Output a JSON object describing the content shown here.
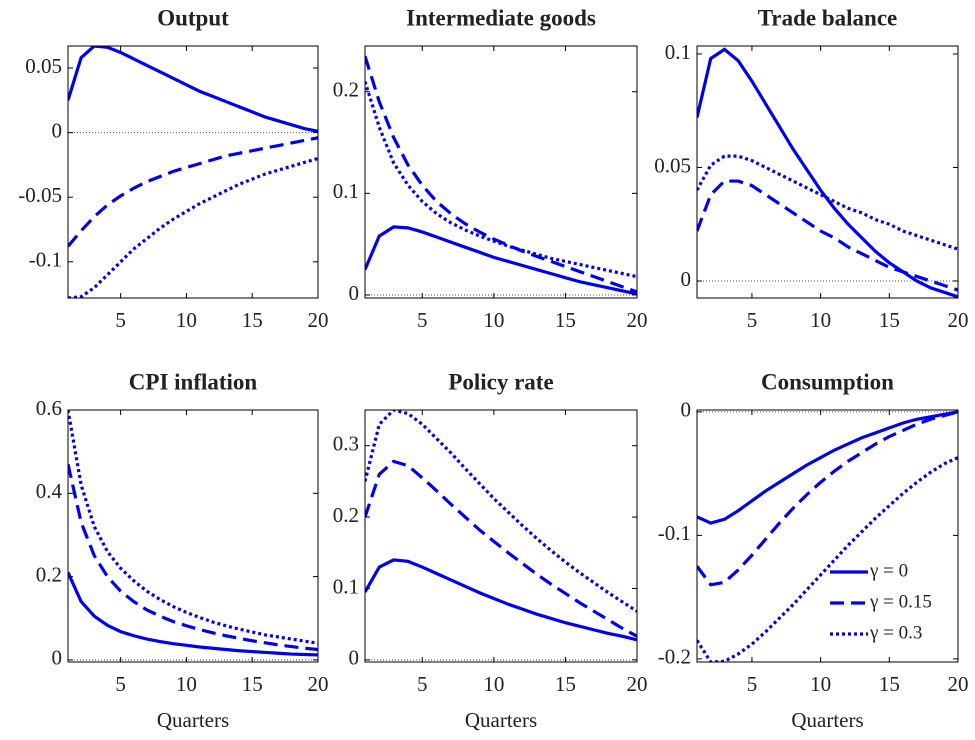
{
  "chart_data": [
    {
      "type": "line",
      "title": "Output",
      "x": [
        1,
        2,
        3,
        4,
        5,
        6,
        7,
        8,
        9,
        10,
        11,
        12,
        13,
        14,
        15,
        16,
        17,
        18,
        19,
        20
      ],
      "xlim": [
        1,
        20
      ],
      "xticks": [
        5,
        10,
        15,
        20
      ],
      "ylim": [
        -0.128,
        0.067
      ],
      "yticks": [
        -0.1,
        -0.05,
        0,
        0.05
      ],
      "zero_line": true,
      "series": [
        {
          "color": "#0000ee",
          "dash": "solid",
          "values": [
            0.025,
            0.058,
            0.067,
            0.066,
            0.062,
            0.057,
            0.052,
            0.047,
            0.042,
            0.037,
            0.032,
            0.028,
            0.024,
            0.02,
            0.016,
            0.012,
            0.009,
            0.006,
            0.003,
            0.001
          ]
        },
        {
          "color": "#0000ee",
          "dash": "dashed",
          "values": [
            -0.088,
            -0.076,
            -0.065,
            -0.056,
            -0.049,
            -0.043,
            -0.038,
            -0.034,
            -0.03,
            -0.027,
            -0.024,
            -0.021,
            -0.018,
            -0.016,
            -0.014,
            -0.012,
            -0.01,
            -0.008,
            -0.006,
            -0.004
          ]
        },
        {
          "color": "#0000ee",
          "dash": "dotted",
          "values": [
            -0.128,
            -0.127,
            -0.12,
            -0.11,
            -0.1,
            -0.09,
            -0.082,
            -0.074,
            -0.067,
            -0.061,
            -0.055,
            -0.05,
            -0.045,
            -0.04,
            -0.036,
            -0.032,
            -0.029,
            -0.026,
            -0.023,
            -0.02
          ]
        }
      ]
    },
    {
      "type": "line",
      "title": "Intermediate goods",
      "x": [
        1,
        2,
        3,
        4,
        5,
        6,
        7,
        8,
        9,
        10,
        11,
        12,
        13,
        14,
        15,
        16,
        17,
        18,
        19,
        20
      ],
      "xlim": [
        1,
        20
      ],
      "xticks": [
        5,
        10,
        15,
        20
      ],
      "ylim": [
        -0.003,
        0.245
      ],
      "yticks": [
        0,
        0.1,
        0.2
      ],
      "zero_line": true,
      "series": [
        {
          "color": "#0000ee",
          "dash": "solid",
          "values": [
            0.025,
            0.058,
            0.067,
            0.066,
            0.062,
            0.057,
            0.052,
            0.047,
            0.042,
            0.037,
            0.033,
            0.029,
            0.025,
            0.021,
            0.017,
            0.013,
            0.01,
            0.007,
            0.004,
            0.001
          ]
        },
        {
          "color": "#0000ee",
          "dash": "dashed",
          "values": [
            0.235,
            0.19,
            0.155,
            0.128,
            0.108,
            0.092,
            0.08,
            0.07,
            0.062,
            0.055,
            0.049,
            0.043,
            0.038,
            0.033,
            0.028,
            0.023,
            0.018,
            0.013,
            0.008,
            0.003
          ]
        },
        {
          "color": "#0000ee",
          "dash": "dotted",
          "values": [
            0.21,
            0.165,
            0.13,
            0.108,
            0.092,
            0.08,
            0.071,
            0.064,
            0.058,
            0.053,
            0.048,
            0.044,
            0.04,
            0.036,
            0.033,
            0.03,
            0.027,
            0.024,
            0.021,
            0.018
          ]
        }
      ]
    },
    {
      "type": "line",
      "title": "Trade balance",
      "x": [
        1,
        2,
        3,
        4,
        5,
        6,
        7,
        8,
        9,
        10,
        11,
        12,
        13,
        14,
        15,
        16,
        17,
        18,
        19,
        20
      ],
      "xlim": [
        1,
        20
      ],
      "xticks": [
        5,
        10,
        15,
        20
      ],
      "ylim": [
        -0.0075,
        0.1035
      ],
      "yticks": [
        0,
        0.05,
        0.1
      ],
      "zero_line": true,
      "series": [
        {
          "color": "#0000ee",
          "dash": "solid",
          "values": [
            0.072,
            0.098,
            0.102,
            0.097,
            0.088,
            0.078,
            0.068,
            0.058,
            0.049,
            0.04,
            0.032,
            0.025,
            0.019,
            0.013,
            0.008,
            0.004,
            0.0,
            -0.003,
            -0.005,
            -0.007
          ]
        },
        {
          "color": "#0000ee",
          "dash": "dashed",
          "values": [
            0.022,
            0.038,
            0.044,
            0.044,
            0.042,
            0.038,
            0.034,
            0.03,
            0.026,
            0.022,
            0.019,
            0.015,
            0.012,
            0.009,
            0.006,
            0.004,
            0.002,
            0.0,
            -0.002,
            -0.004
          ]
        },
        {
          "color": "#0000ee",
          "dash": "dotted",
          "values": [
            0.04,
            0.051,
            0.055,
            0.055,
            0.053,
            0.05,
            0.047,
            0.044,
            0.041,
            0.038,
            0.035,
            0.032,
            0.03,
            0.027,
            0.025,
            0.022,
            0.02,
            0.018,
            0.016,
            0.014
          ]
        }
      ]
    },
    {
      "type": "line",
      "title": "CPI inflation",
      "xlabel": "Quarters",
      "x": [
        1,
        2,
        3,
        4,
        5,
        6,
        7,
        8,
        9,
        10,
        11,
        12,
        13,
        14,
        15,
        16,
        17,
        18,
        19,
        20
      ],
      "xlim": [
        1,
        20
      ],
      "xticks": [
        5,
        10,
        15,
        20
      ],
      "ylim": [
        -0.005,
        0.6
      ],
      "yticks": [
        0,
        0.2,
        0.4,
        0.6
      ],
      "zero_line": true,
      "series": [
        {
          "color": "#0000ee",
          "dash": "solid",
          "values": [
            0.21,
            0.14,
            0.105,
            0.083,
            0.068,
            0.058,
            0.05,
            0.044,
            0.039,
            0.035,
            0.031,
            0.028,
            0.025,
            0.022,
            0.02,
            0.018,
            0.016,
            0.014,
            0.013,
            0.012
          ]
        },
        {
          "color": "#0000ee",
          "dash": "dashed",
          "values": [
            0.47,
            0.33,
            0.25,
            0.2,
            0.165,
            0.14,
            0.12,
            0.105,
            0.092,
            0.082,
            0.073,
            0.065,
            0.058,
            0.052,
            0.046,
            0.041,
            0.036,
            0.032,
            0.028,
            0.025
          ]
        },
        {
          "color": "#0000ee",
          "dash": "dotted",
          "values": [
            0.6,
            0.42,
            0.32,
            0.26,
            0.22,
            0.19,
            0.165,
            0.145,
            0.128,
            0.114,
            0.102,
            0.091,
            0.082,
            0.074,
            0.067,
            0.06,
            0.055,
            0.05,
            0.045,
            0.04
          ]
        }
      ]
    },
    {
      "type": "line",
      "title": "Policy rate",
      "xlabel": "Quarters",
      "x": [
        1,
        2,
        3,
        4,
        5,
        6,
        7,
        8,
        9,
        10,
        11,
        12,
        13,
        14,
        15,
        16,
        17,
        18,
        19,
        20
      ],
      "xlim": [
        1,
        20
      ],
      "xticks": [
        5,
        10,
        15,
        20
      ],
      "ylim": [
        -0.003,
        0.35
      ],
      "yticks": [
        0,
        0.1,
        0.2,
        0.3
      ],
      "zero_line": true,
      "series": [
        {
          "color": "#0000ee",
          "dash": "solid",
          "values": [
            0.095,
            0.13,
            0.14,
            0.138,
            0.13,
            0.121,
            0.112,
            0.103,
            0.094,
            0.086,
            0.078,
            0.071,
            0.064,
            0.058,
            0.052,
            0.047,
            0.042,
            0.037,
            0.033,
            0.028
          ]
        },
        {
          "color": "#0000ee",
          "dash": "dashed",
          "values": [
            0.2,
            0.26,
            0.278,
            0.272,
            0.255,
            0.237,
            0.218,
            0.2,
            0.182,
            0.166,
            0.15,
            0.135,
            0.12,
            0.106,
            0.093,
            0.08,
            0.068,
            0.056,
            0.044,
            0.033
          ]
        },
        {
          "color": "#0000ee",
          "dash": "dotted",
          "values": [
            0.25,
            0.33,
            0.35,
            0.345,
            0.33,
            0.31,
            0.29,
            0.268,
            0.247,
            0.226,
            0.207,
            0.188,
            0.17,
            0.153,
            0.137,
            0.122,
            0.108,
            0.094,
            0.081,
            0.068
          ]
        }
      ]
    },
    {
      "type": "line",
      "title": "Consumption",
      "xlabel": "Quarters",
      "x": [
        1,
        2,
        3,
        4,
        5,
        6,
        7,
        8,
        9,
        10,
        11,
        12,
        13,
        14,
        15,
        16,
        17,
        18,
        19,
        20
      ],
      "xlim": [
        1,
        20
      ],
      "xticks": [
        5,
        10,
        15,
        20
      ],
      "ylim": [
        -0.2025,
        0.0015
      ],
      "yticks": [
        -0.2,
        -0.1,
        0
      ],
      "zero_line": true,
      "legend": "lower right",
      "series": [
        {
          "name": "γ = 0",
          "color": "#0000ee",
          "dash": "solid",
          "values": [
            -0.085,
            -0.09,
            -0.087,
            -0.08,
            -0.072,
            -0.064,
            -0.057,
            -0.05,
            -0.043,
            -0.037,
            -0.031,
            -0.026,
            -0.021,
            -0.017,
            -0.013,
            -0.009,
            -0.006,
            -0.004,
            -0.002,
            0.0
          ]
        },
        {
          "name": "γ = 0.15",
          "color": "#0000ee",
          "dash": "dashed",
          "values": [
            -0.125,
            -0.14,
            -0.138,
            -0.128,
            -0.116,
            -0.103,
            -0.09,
            -0.078,
            -0.067,
            -0.057,
            -0.048,
            -0.04,
            -0.033,
            -0.026,
            -0.02,
            -0.015,
            -0.01,
            -0.006,
            -0.003,
            0.0
          ]
        },
        {
          "name": "γ = 0.3",
          "color": "#0000ee",
          "dash": "dotted",
          "values": [
            -0.185,
            -0.2025,
            -0.202,
            -0.196,
            -0.188,
            -0.178,
            -0.167,
            -0.156,
            -0.144,
            -0.132,
            -0.12,
            -0.108,
            -0.097,
            -0.086,
            -0.076,
            -0.066,
            -0.057,
            -0.049,
            -0.042,
            -0.037
          ]
        }
      ]
    }
  ]
}
